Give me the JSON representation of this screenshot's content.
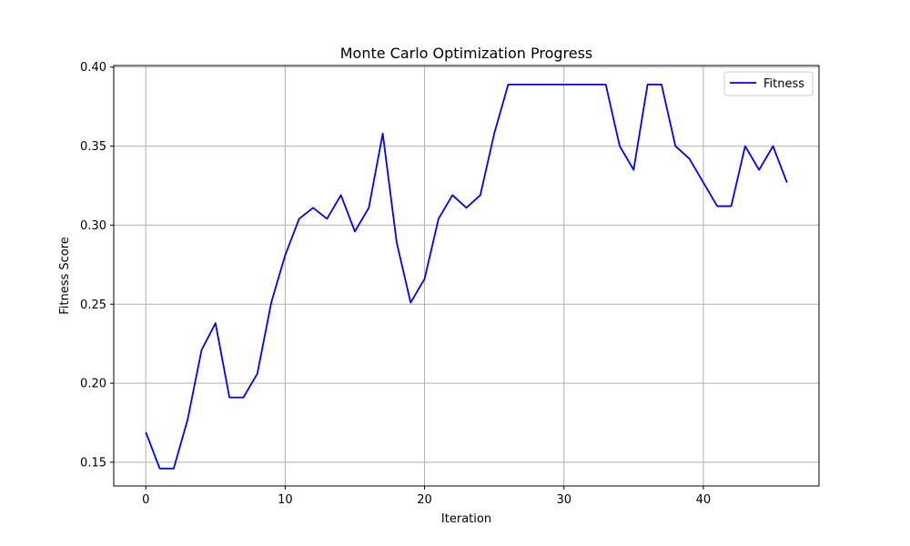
{
  "chart_data": {
    "type": "line",
    "title": "Monte Carlo Optimization Progress",
    "xlabel": "Iteration",
    "ylabel": "Fitness Score",
    "xlim": [
      -2.3,
      48.3
    ],
    "ylim": [
      0.135,
      0.401
    ],
    "xticks": [
      0,
      10,
      20,
      30,
      40
    ],
    "yticks": [
      0.15,
      0.2,
      0.25,
      0.3,
      0.35,
      0.4
    ],
    "yticks_labels": [
      "0.15",
      "0.20",
      "0.25",
      "0.30",
      "0.35",
      "0.40"
    ],
    "grid": true,
    "legend": "top-right",
    "series": [
      {
        "name": "Fitness",
        "color": "#0000ff",
        "x": [
          0,
          1,
          2,
          3,
          4,
          5,
          6,
          7,
          8,
          9,
          10,
          11,
          12,
          13,
          14,
          15,
          16,
          17,
          18,
          19,
          20,
          21,
          22,
          23,
          24,
          25,
          26,
          27,
          28,
          29,
          30,
          31,
          32,
          33,
          34,
          35,
          36,
          37,
          38,
          39,
          40,
          41,
          42,
          43,
          44,
          45,
          46
        ],
        "values": [
          0.169,
          0.146,
          0.146,
          0.177,
          0.221,
          0.238,
          0.191,
          0.191,
          0.206,
          0.251,
          0.281,
          0.304,
          0.311,
          0.304,
          0.319,
          0.296,
          0.311,
          0.358,
          0.289,
          0.251,
          0.266,
          0.304,
          0.319,
          0.311,
          0.319,
          0.358,
          0.389,
          0.389,
          0.389,
          0.389,
          0.389,
          0.389,
          0.389,
          0.389,
          0.35,
          0.335,
          0.389,
          0.389,
          0.35,
          0.342,
          0.327,
          0.312,
          0.312,
          0.35,
          0.335,
          0.35,
          0.327
        ]
      }
    ]
  }
}
